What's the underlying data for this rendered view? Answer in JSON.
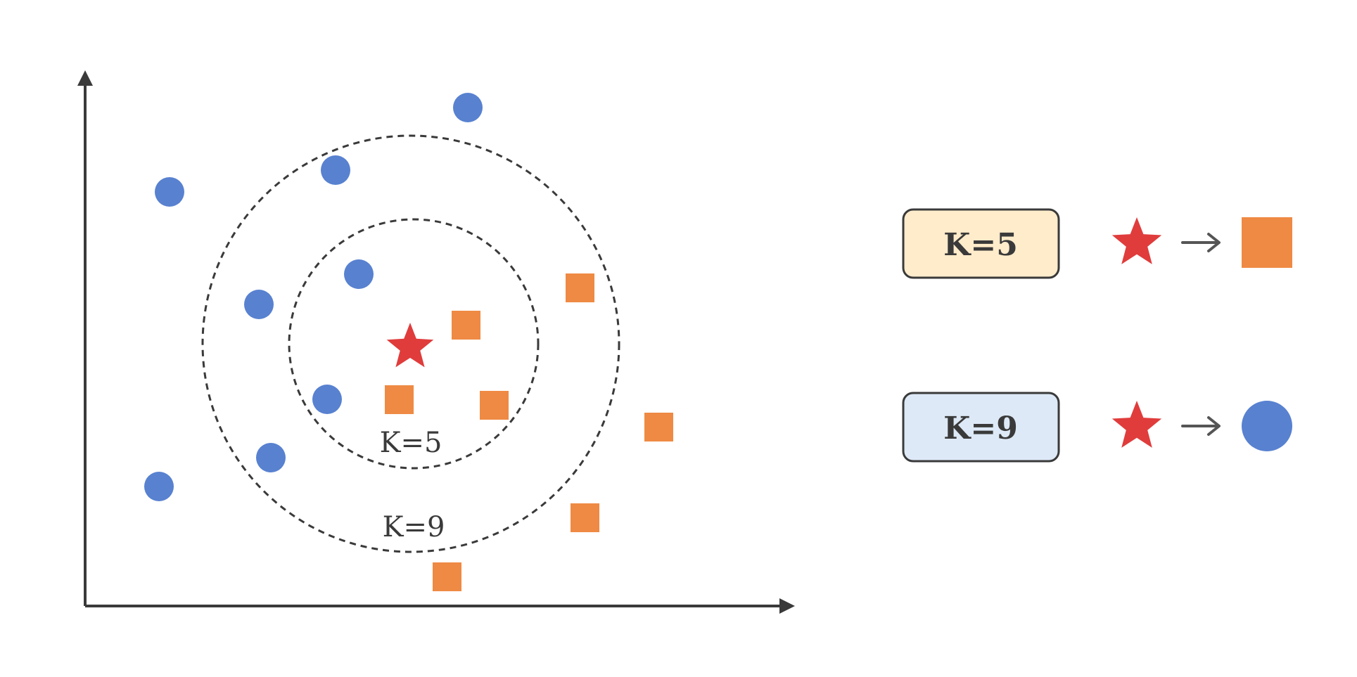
{
  "colors": {
    "class_a": "#5881d0",
    "class_b": "#ef8a44",
    "query": "#e03c3c",
    "axis": "#3a3a3a",
    "k5_box_fill": "#ffeccb",
    "k9_box_fill": "#dde9f6"
  },
  "shapes": {
    "class_a": "circle",
    "class_b": "square",
    "query": "star"
  },
  "neighborhoods": [
    {
      "label": "K=5"
    },
    {
      "label": "K=9"
    }
  ],
  "results": [
    {
      "label": "K=5",
      "predicted_shape": "square",
      "predicted_color_key": "class_b"
    },
    {
      "label": "K=9",
      "predicted_shape": "circle",
      "predicted_color_key": "class_a"
    }
  ],
  "icons": {
    "arrow": "→",
    "star": "star-icon",
    "square": "square-icon",
    "circle": "circle-icon"
  }
}
